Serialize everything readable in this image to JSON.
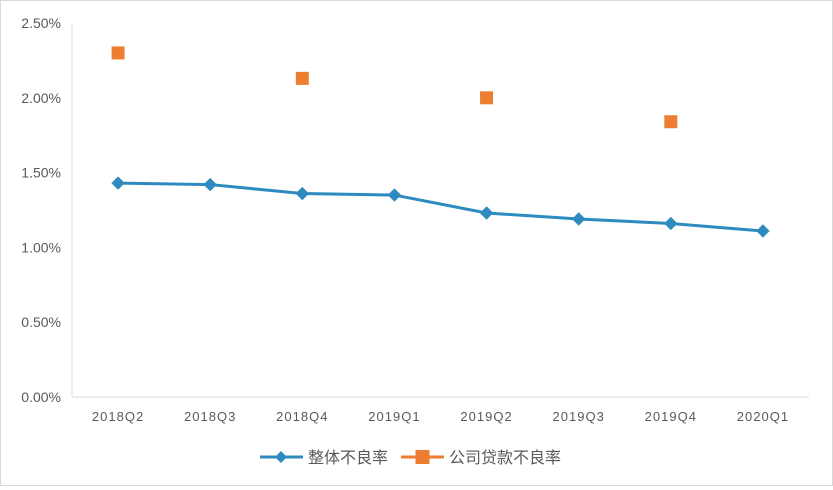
{
  "chart_data": {
    "type": "line",
    "title": "",
    "xlabel": "",
    "ylabel": "",
    "categories": [
      "2018Q2",
      "2018Q3",
      "2018Q4",
      "2019Q1",
      "2019Q2",
      "2019Q3",
      "2019Q4",
      "2020Q1"
    ],
    "yticks": [
      "0.00%",
      "0.50%",
      "1.00%",
      "1.50%",
      "2.00%",
      "2.50%"
    ],
    "ylim": [
      0,
      2.5
    ],
    "grid": false,
    "legend_position": "bottom",
    "series": [
      {
        "name": "整体不良率",
        "type": "line",
        "marker": "diamond",
        "color": "#2e8bc0",
        "values": [
          1.43,
          1.42,
          1.36,
          1.35,
          1.23,
          1.19,
          1.16,
          1.11
        ]
      },
      {
        "name": "公司贷款不良率",
        "type": "scatter",
        "marker": "square",
        "color": "#ed7d31",
        "values": [
          2.3,
          null,
          2.13,
          null,
          2.0,
          null,
          1.84,
          null
        ]
      }
    ]
  }
}
